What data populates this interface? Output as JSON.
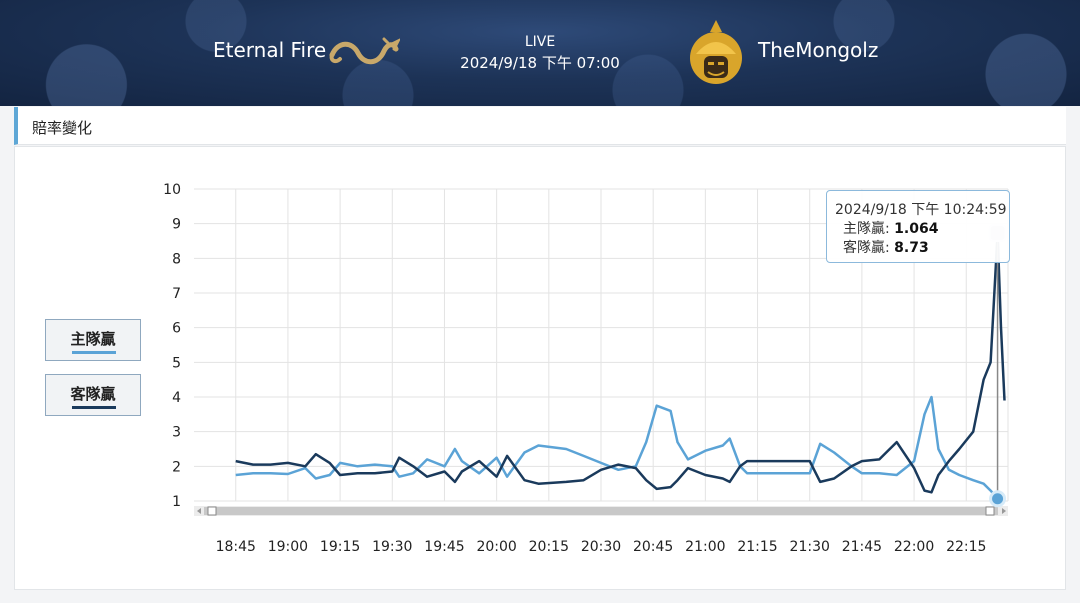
{
  "header": {
    "home_team": "Eternal Fire",
    "away_team": "TheMongolz",
    "status": "LIVE",
    "match_time": "2024/9/18 下午 07:00"
  },
  "section": {
    "title": "賠率變化"
  },
  "legend": {
    "home_label": "主隊贏",
    "away_label": "客隊贏"
  },
  "tooltip": {
    "datetime": "2024/9/18 下午 10:24:59",
    "home_label": "主隊贏",
    "home_value": "1.064",
    "away_label": "客隊贏",
    "away_value": "8.73"
  },
  "colors": {
    "home": "#5ba3d6",
    "away": "#1a3a5c",
    "accent": "#5ea7d6"
  },
  "chart_data": {
    "type": "line",
    "title": "賠率變化",
    "xlabel": "",
    "ylabel": "",
    "ylim": [
      1,
      10
    ],
    "yticks": [
      "1",
      "2",
      "3",
      "4",
      "5",
      "6",
      "7",
      "8",
      "9",
      "10"
    ],
    "xticks": [
      "18:45",
      "19:00",
      "19:15",
      "19:30",
      "19:45",
      "20:00",
      "20:15",
      "20:30",
      "20:45",
      "21:00",
      "21:15",
      "21:30",
      "21:45",
      "22:00",
      "22:15"
    ],
    "grid": true,
    "series": [
      {
        "name": "主隊贏",
        "color": "#5ba3d6",
        "points": [
          [
            "18:45",
            1.75
          ],
          [
            "18:50",
            1.8
          ],
          [
            "18:55",
            1.8
          ],
          [
            "19:00",
            1.78
          ],
          [
            "19:05",
            1.95
          ],
          [
            "19:08",
            1.65
          ],
          [
            "19:12",
            1.75
          ],
          [
            "19:15",
            2.1
          ],
          [
            "19:20",
            2.0
          ],
          [
            "19:25",
            2.05
          ],
          [
            "19:30",
            2.0
          ],
          [
            "19:32",
            1.7
          ],
          [
            "19:36",
            1.8
          ],
          [
            "19:40",
            2.2
          ],
          [
            "19:45",
            2.0
          ],
          [
            "19:48",
            2.5
          ],
          [
            "19:50",
            2.15
          ],
          [
            "19:55",
            1.8
          ],
          [
            "20:00",
            2.25
          ],
          [
            "20:03",
            1.7
          ],
          [
            "20:08",
            2.4
          ],
          [
            "20:12",
            2.6
          ],
          [
            "20:20",
            2.5
          ],
          [
            "20:25",
            2.3
          ],
          [
            "20:30",
            2.1
          ],
          [
            "20:35",
            1.9
          ],
          [
            "20:40",
            2.0
          ],
          [
            "20:43",
            2.7
          ],
          [
            "20:46",
            3.75
          ],
          [
            "20:50",
            3.6
          ],
          [
            "20:52",
            2.7
          ],
          [
            "20:55",
            2.2
          ],
          [
            "21:00",
            2.45
          ],
          [
            "21:05",
            2.6
          ],
          [
            "21:07",
            2.8
          ],
          [
            "21:10",
            2.0
          ],
          [
            "21:12",
            1.8
          ],
          [
            "21:20",
            1.8
          ],
          [
            "21:30",
            1.8
          ],
          [
            "21:33",
            2.65
          ],
          [
            "21:37",
            2.4
          ],
          [
            "21:42",
            2.0
          ],
          [
            "21:45",
            1.8
          ],
          [
            "21:50",
            1.8
          ],
          [
            "21:55",
            1.75
          ],
          [
            "22:00",
            2.15
          ],
          [
            "22:03",
            3.5
          ],
          [
            "22:05",
            4.0
          ],
          [
            "22:07",
            2.5
          ],
          [
            "22:10",
            1.9
          ],
          [
            "22:13",
            1.75
          ],
          [
            "22:17",
            1.6
          ],
          [
            "22:20",
            1.5
          ],
          [
            "22:22",
            1.3
          ],
          [
            "22:24",
            1.064
          ]
        ]
      },
      {
        "name": "客隊贏",
        "color": "#1a3a5c",
        "points": [
          [
            "18:45",
            2.15
          ],
          [
            "18:50",
            2.05
          ],
          [
            "18:55",
            2.05
          ],
          [
            "19:00",
            2.1
          ],
          [
            "19:05",
            2.0
          ],
          [
            "19:08",
            2.35
          ],
          [
            "19:12",
            2.1
          ],
          [
            "19:15",
            1.75
          ],
          [
            "19:20",
            1.8
          ],
          [
            "19:25",
            1.8
          ],
          [
            "19:30",
            1.85
          ],
          [
            "19:32",
            2.25
          ],
          [
            "19:36",
            2.0
          ],
          [
            "19:40",
            1.7
          ],
          [
            "19:45",
            1.85
          ],
          [
            "19:48",
            1.55
          ],
          [
            "19:50",
            1.85
          ],
          [
            "19:55",
            2.15
          ],
          [
            "20:00",
            1.7
          ],
          [
            "20:03",
            2.3
          ],
          [
            "20:08",
            1.6
          ],
          [
            "20:12",
            1.5
          ],
          [
            "20:20",
            1.55
          ],
          [
            "20:25",
            1.6
          ],
          [
            "20:30",
            1.9
          ],
          [
            "20:35",
            2.05
          ],
          [
            "20:40",
            1.95
          ],
          [
            "20:43",
            1.6
          ],
          [
            "20:46",
            1.35
          ],
          [
            "20:50",
            1.4
          ],
          [
            "20:52",
            1.6
          ],
          [
            "20:55",
            1.95
          ],
          [
            "21:00",
            1.75
          ],
          [
            "21:05",
            1.65
          ],
          [
            "21:07",
            1.55
          ],
          [
            "21:10",
            2.0
          ],
          [
            "21:12",
            2.15
          ],
          [
            "21:20",
            2.15
          ],
          [
            "21:30",
            2.15
          ],
          [
            "21:33",
            1.55
          ],
          [
            "21:37",
            1.65
          ],
          [
            "21:42",
            2.0
          ],
          [
            "21:45",
            2.15
          ],
          [
            "21:50",
            2.2
          ],
          [
            "21:55",
            2.7
          ],
          [
            "22:00",
            1.95
          ],
          [
            "22:03",
            1.3
          ],
          [
            "22:05",
            1.25
          ],
          [
            "22:07",
            1.75
          ],
          [
            "22:10",
            2.15
          ],
          [
            "22:13",
            2.5
          ],
          [
            "22:17",
            3.0
          ],
          [
            "22:20",
            4.5
          ],
          [
            "22:22",
            5.0
          ],
          [
            "22:24",
            8.73
          ],
          [
            "22:25",
            6.0
          ],
          [
            "22:26",
            3.9
          ]
        ]
      }
    ],
    "annotations": [
      "2024/9/18 下午 10:24:59",
      "主隊贏: 1.064",
      "客隊贏: 8.73"
    ]
  }
}
